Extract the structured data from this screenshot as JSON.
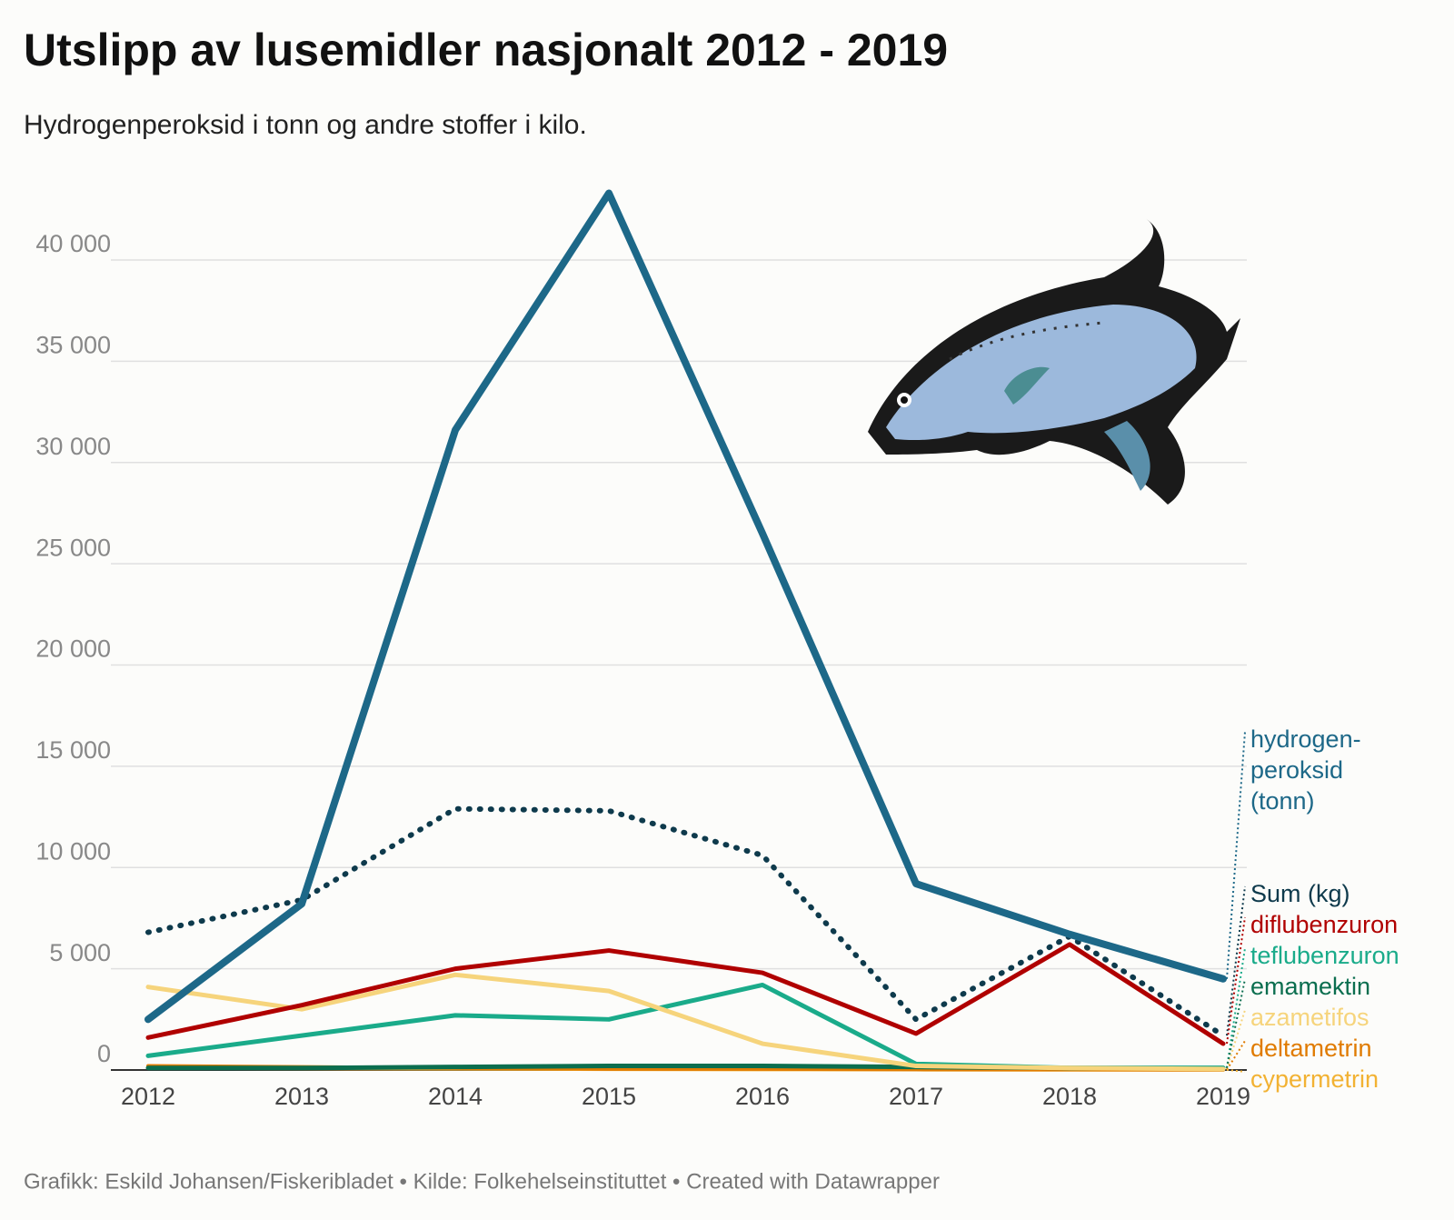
{
  "chart_data": {
    "type": "line",
    "title": "Utslipp av lusemidler nasjonalt 2012 - 2019",
    "subtitle": "Hydrogenperoksid i tonn og andre stoffer i kilo.",
    "footer": "Grafikk: Eskild Johansen/Fiskeribladet • Kilde: Folkehelseinstituttet • Created with Datawrapper",
    "categories": [
      "2012",
      "2013",
      "2014",
      "2015",
      "2016",
      "2017",
      "2018",
      "2019"
    ],
    "ylim": [
      0,
      45000
    ],
    "yticks": [
      0,
      {
        "value": 5000,
        "label": "5 000"
      },
      {
        "value": 10000,
        "label": "10 000"
      },
      {
        "value": 15000,
        "label": "15 000"
      },
      {
        "value": 20000,
        "label": "20 000"
      },
      {
        "value": 25000,
        "label": "25 000"
      },
      {
        "value": 30000,
        "label": "30 000"
      },
      {
        "value": 35000,
        "label": "35 000"
      },
      {
        "value": 40000,
        "label": "40 000"
      }
    ],
    "grid": true,
    "series": [
      {
        "name": "hydrogen-peroksid (tonn)",
        "color": "#1d6888",
        "width": 8,
        "dotted": false,
        "values": [
          2500,
          8200,
          31600,
          43300,
          26500,
          9200,
          6700,
          4500
        ]
      },
      {
        "name": "Sum (kg)",
        "color": "#0e3a4c",
        "width": 6,
        "dotted": true,
        "values": [
          6800,
          8400,
          12900,
          12800,
          10600,
          2500,
          6600,
          1700
        ]
      },
      {
        "name": "diflubenzuron",
        "color": "#b00000",
        "width": 5,
        "dotted": false,
        "values": [
          1600,
          3200,
          5000,
          5900,
          4800,
          1800,
          6200,
          1300
        ]
      },
      {
        "name": "azametifos",
        "color": "#f6d47c",
        "width": 5,
        "dotted": false,
        "values": [
          4100,
          3000,
          4700,
          3900,
          1300,
          200,
          100,
          50
        ]
      },
      {
        "name": "teflubenzuron",
        "color": "#1aab8a",
        "width": 5,
        "dotted": false,
        "values": [
          700,
          1700,
          2700,
          2500,
          4200,
          300,
          100,
          100
        ]
      },
      {
        "name": "emamektin",
        "color": "#0b6e4f",
        "width": 5,
        "dotted": false,
        "values": [
          100,
          100,
          150,
          200,
          200,
          150,
          100,
          100
        ]
      },
      {
        "name": "deltametrin",
        "color": "#e07b00",
        "width": 4,
        "dotted": false,
        "values": [
          200,
          150,
          100,
          50,
          50,
          30,
          20,
          10
        ]
      },
      {
        "name": "cypermetrin",
        "color": "#f2b233",
        "width": 4,
        "dotted": false,
        "values": [
          100,
          80,
          60,
          40,
          30,
          20,
          10,
          10
        ]
      }
    ]
  }
}
